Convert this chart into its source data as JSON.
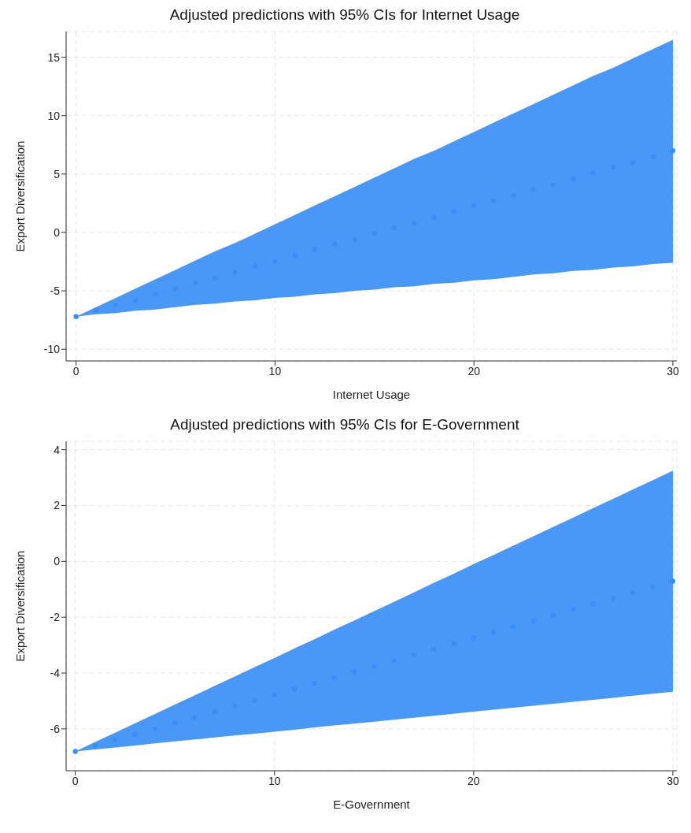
{
  "chart_data": [
    {
      "type": "scatter",
      "title": "Adjusted predictions with 95% CIs for Internet Usage",
      "xlabel": "Internet Usage",
      "ylabel": "Export Diversification",
      "x": [
        0,
        1,
        2,
        3,
        4,
        5,
        6,
        7,
        8,
        9,
        10,
        11,
        12,
        13,
        14,
        15,
        16,
        17,
        18,
        19,
        20,
        21,
        22,
        23,
        24,
        25,
        26,
        27,
        28,
        29,
        30
      ],
      "xlim": [
        -0.5,
        30.2
      ],
      "xticks": [
        0,
        10,
        20,
        30
      ],
      "ylim": [
        -11,
        17.2
      ],
      "yticks": [
        -10,
        -5,
        0,
        5,
        10,
        15
      ],
      "grid": true,
      "marker": "circle",
      "series": [
        {
          "color": "#3a8ef6",
          "values": [
            -7.2,
            -6.7,
            -6.2,
            -5.8,
            -5.3,
            -4.8,
            -4.3,
            -3.9,
            -3.4,
            -2.9,
            -2.5,
            -2.0,
            -1.5,
            -1.0,
            -0.6,
            -0.1,
            0.4,
            0.8,
            1.3,
            1.8,
            2.3,
            2.7,
            3.2,
            3.7,
            4.1,
            4.6,
            5.1,
            5.6,
            6.0,
            6.5,
            7.0
          ],
          "upper": [
            -7.2,
            -6.4,
            -5.6,
            -4.8,
            -4.0,
            -3.2,
            -2.4,
            -1.6,
            -0.9,
            -0.1,
            0.7,
            1.5,
            2.3,
            3.1,
            3.9,
            4.7,
            5.5,
            6.3,
            7.0,
            7.8,
            8.6,
            9.4,
            10.2,
            11.0,
            11.8,
            12.6,
            13.4,
            14.1,
            14.9,
            15.7,
            16.5
          ],
          "lower": [
            -7.2,
            -7.0,
            -6.9,
            -6.7,
            -6.6,
            -6.4,
            -6.2,
            -6.1,
            -5.9,
            -5.8,
            -5.6,
            -5.5,
            -5.3,
            -5.2,
            -5.0,
            -4.9,
            -4.7,
            -4.6,
            -4.4,
            -4.3,
            -4.1,
            -4.0,
            -3.8,
            -3.6,
            -3.5,
            -3.3,
            -3.2,
            -3.0,
            -2.9,
            -2.7,
            -2.6
          ]
        }
      ]
    },
    {
      "type": "scatter",
      "title": "Adjusted predictions with 95% CIs for E-Government",
      "xlabel": "E-Government",
      "ylabel": "Export Diversification",
      "x": [
        0,
        1,
        2,
        3,
        4,
        5,
        6,
        7,
        8,
        9,
        10,
        11,
        12,
        13,
        14,
        15,
        16,
        17,
        18,
        19,
        20,
        21,
        22,
        23,
        24,
        25,
        26,
        27,
        28,
        29,
        30
      ],
      "xlim": [
        -0.46,
        30.2
      ],
      "xticks": [
        0,
        10,
        20,
        30
      ],
      "ylim": [
        -7.5,
        4.3
      ],
      "yticks": [
        -6,
        -4,
        -2,
        0,
        2,
        4
      ],
      "grid": true,
      "marker": "circle",
      "series": [
        {
          "color": "#3a8ef6",
          "values": [
            -6.81,
            -6.61,
            -6.4,
            -6.2,
            -6.0,
            -5.79,
            -5.59,
            -5.39,
            -5.18,
            -4.98,
            -4.78,
            -4.57,
            -4.37,
            -4.17,
            -3.96,
            -3.76,
            -3.56,
            -3.35,
            -3.15,
            -2.95,
            -2.74,
            -2.54,
            -2.34,
            -2.13,
            -1.93,
            -1.73,
            -1.52,
            -1.32,
            -1.12,
            -0.91,
            -0.71
          ],
          "upper": [
            -6.81,
            -6.47,
            -6.14,
            -5.8,
            -5.47,
            -5.13,
            -4.8,
            -4.46,
            -4.13,
            -3.79,
            -3.46,
            -3.12,
            -2.79,
            -2.45,
            -2.12,
            -1.78,
            -1.45,
            -1.11,
            -0.77,
            -0.44,
            -0.1,
            0.23,
            0.57,
            0.9,
            1.24,
            1.57,
            1.91,
            2.24,
            2.58,
            2.91,
            3.25
          ],
          "lower": [
            -6.81,
            -6.74,
            -6.67,
            -6.6,
            -6.52,
            -6.45,
            -6.38,
            -6.31,
            -6.24,
            -6.17,
            -6.1,
            -6.03,
            -5.95,
            -5.88,
            -5.81,
            -5.74,
            -5.67,
            -5.6,
            -5.53,
            -5.46,
            -5.38,
            -5.31,
            -5.24,
            -5.17,
            -5.1,
            -5.03,
            -4.96,
            -4.89,
            -4.81,
            -4.74,
            -4.67
          ]
        }
      ]
    }
  ]
}
